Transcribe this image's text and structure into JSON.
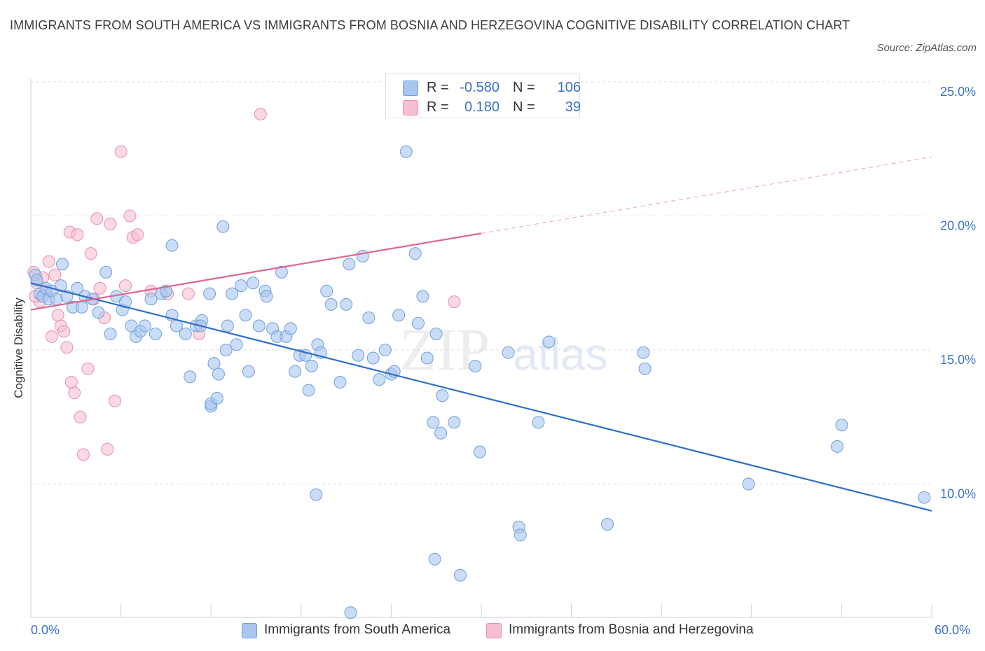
{
  "title": "IMMIGRANTS FROM SOUTH AMERICA VS IMMIGRANTS FROM BOSNIA AND HERZEGOVINA COGNITIVE DISABILITY CORRELATION CHART",
  "source": "Source: ZipAtlas.com",
  "watermark": {
    "zip": "ZIP",
    "atlas": "atlas"
  },
  "legend": {
    "rows": [
      {
        "r_label": "R =",
        "r_value": "-0.580",
        "n_label": "N =",
        "n_value": "106"
      },
      {
        "r_label": "R =",
        "r_value": "0.180",
        "n_label": "N =",
        "n_value": "39"
      }
    ]
  },
  "colors": {
    "blue_fill": "#a9c6f0",
    "blue_stroke": "#6f9fdc",
    "blue_line": "#2f6fcc",
    "pink_fill": "#f6bfd0",
    "pink_stroke": "#e88fab",
    "pink_line": "#e06591",
    "axis_text": "#3a72c8",
    "grid": "#dddddd"
  },
  "chart_data": {
    "type": "scatter",
    "title": "IMMIGRANTS FROM SOUTH AMERICA VS IMMIGRANTS FROM BOSNIA AND HERZEGOVINA COGNITIVE DISABILITY CORRELATION CHART",
    "xlabel": "",
    "ylabel": "Cognitive Disability",
    "xlim": [
      0,
      60
    ],
    "ylim": [
      5,
      26
    ],
    "x_tick_labels": [
      "0.0%",
      "60.0%"
    ],
    "y_ticks": [
      10,
      15,
      20,
      25
    ],
    "y_tick_labels": [
      "10.0%",
      "15.0%",
      "20.0%",
      "25.0%"
    ],
    "grid": true,
    "legend_position": "bottom",
    "series": [
      {
        "name": "Immigrants from South America",
        "color": "#a9c6f0",
        "trend": {
          "x0": 0,
          "y0": 17.5,
          "x1": 60,
          "y1": 9.0,
          "dashed_from": null
        },
        "points": [
          [
            0.3,
            17.8
          ],
          [
            0.4,
            17.6
          ],
          [
            0.6,
            17.1
          ],
          [
            0.8,
            17.0
          ],
          [
            1.0,
            17.3
          ],
          [
            1.2,
            16.9
          ],
          [
            1.4,
            17.2
          ],
          [
            1.7,
            16.9
          ],
          [
            2.0,
            17.4
          ],
          [
            2.1,
            18.2
          ],
          [
            2.4,
            17.0
          ],
          [
            2.8,
            16.6
          ],
          [
            3.1,
            17.3
          ],
          [
            3.4,
            16.6
          ],
          [
            3.6,
            17.0
          ],
          [
            4.1,
            16.9
          ],
          [
            4.5,
            16.4
          ],
          [
            5.0,
            17.9
          ],
          [
            5.3,
            15.6
          ],
          [
            5.7,
            17.0
          ],
          [
            6.1,
            16.5
          ],
          [
            6.3,
            16.8
          ],
          [
            6.7,
            15.9
          ],
          [
            7.0,
            15.5
          ],
          [
            7.3,
            15.7
          ],
          [
            7.6,
            15.9
          ],
          [
            8.0,
            16.9
          ],
          [
            8.3,
            15.6
          ],
          [
            8.7,
            17.1
          ],
          [
            9.0,
            17.2
          ],
          [
            9.4,
            16.3
          ],
          [
            9.7,
            15.9
          ],
          [
            9.4,
            18.9
          ],
          [
            10.3,
            15.6
          ],
          [
            10.6,
            14.0
          ],
          [
            11.0,
            15.9
          ],
          [
            11.4,
            16.1
          ],
          [
            11.3,
            15.9
          ],
          [
            11.9,
            17.1
          ],
          [
            12.2,
            14.5
          ],
          [
            12.5,
            14.1
          ],
          [
            12.0,
            12.9
          ],
          [
            12.0,
            13.0
          ],
          [
            12.4,
            13.2
          ],
          [
            12.8,
            19.6
          ],
          [
            13.1,
            15.9
          ],
          [
            13.4,
            17.1
          ],
          [
            13.0,
            15.0
          ],
          [
            13.7,
            15.2
          ],
          [
            14.0,
            17.4
          ],
          [
            14.3,
            16.3
          ],
          [
            14.5,
            14.2
          ],
          [
            14.8,
            17.5
          ],
          [
            15.2,
            15.9
          ],
          [
            15.6,
            17.2
          ],
          [
            15.7,
            17.0
          ],
          [
            16.1,
            15.8
          ],
          [
            16.4,
            15.5
          ],
          [
            16.7,
            17.9
          ],
          [
            17.0,
            15.5
          ],
          [
            17.3,
            15.8
          ],
          [
            17.6,
            14.2
          ],
          [
            17.9,
            14.8
          ],
          [
            18.3,
            14.8
          ],
          [
            18.5,
            13.5
          ],
          [
            18.7,
            14.4
          ],
          [
            19.1,
            15.2
          ],
          [
            19.0,
            9.6
          ],
          [
            19.3,
            14.9
          ],
          [
            19.7,
            17.2
          ],
          [
            20.0,
            16.7
          ],
          [
            20.6,
            13.8
          ],
          [
            21.0,
            16.7
          ],
          [
            21.2,
            18.2
          ],
          [
            21.8,
            14.8
          ],
          [
            22.1,
            18.5
          ],
          [
            22.5,
            16.2
          ],
          [
            22.8,
            14.7
          ],
          [
            23.2,
            13.9
          ],
          [
            23.6,
            15.0
          ],
          [
            24.0,
            14.1
          ],
          [
            24.2,
            14.2
          ],
          [
            24.5,
            16.3
          ],
          [
            25.0,
            22.4
          ],
          [
            25.6,
            18.6
          ],
          [
            25.8,
            16.0
          ],
          [
            26.1,
            17.0
          ],
          [
            26.4,
            14.7
          ],
          [
            27.0,
            15.6
          ],
          [
            27.4,
            13.3
          ],
          [
            26.8,
            12.3
          ],
          [
            27.3,
            11.9
          ],
          [
            28.2,
            12.3
          ],
          [
            28.6,
            6.6
          ],
          [
            29.6,
            14.4
          ],
          [
            29.9,
            11.2
          ],
          [
            31.8,
            14.9
          ],
          [
            32.5,
            8.4
          ],
          [
            32.6,
            8.1
          ],
          [
            33.8,
            12.3
          ],
          [
            34.5,
            15.3
          ],
          [
            38.4,
            8.5
          ],
          [
            40.8,
            14.9
          ],
          [
            40.9,
            14.3
          ],
          [
            47.8,
            10.0
          ],
          [
            53.7,
            11.4
          ],
          [
            54.0,
            12.2
          ],
          [
            59.5,
            9.5
          ],
          [
            26.9,
            7.2
          ],
          [
            21.3,
            5.2
          ]
        ]
      },
      {
        "name": "Immigrants from Bosnia and Herzegovina",
        "color": "#f6bfd0",
        "trend": {
          "x0": 0,
          "y0": 16.5,
          "x1": 60,
          "y1": 22.2,
          "dashed_from": 30
        },
        "points": [
          [
            0.2,
            17.9
          ],
          [
            0.4,
            17.5
          ],
          [
            0.6,
            16.8
          ],
          [
            0.8,
            17.7
          ],
          [
            1.0,
            17.2
          ],
          [
            1.2,
            18.3
          ],
          [
            1.4,
            15.5
          ],
          [
            1.6,
            17.8
          ],
          [
            1.8,
            16.3
          ],
          [
            2.0,
            15.9
          ],
          [
            2.2,
            15.7
          ],
          [
            2.4,
            15.1
          ],
          [
            2.6,
            19.4
          ],
          [
            2.7,
            13.8
          ],
          [
            2.9,
            13.4
          ],
          [
            3.1,
            19.3
          ],
          [
            3.3,
            12.5
          ],
          [
            3.5,
            11.1
          ],
          [
            3.8,
            14.3
          ],
          [
            4.0,
            18.6
          ],
          [
            4.2,
            16.9
          ],
          [
            4.4,
            19.9
          ],
          [
            4.6,
            17.3
          ],
          [
            4.9,
            16.2
          ],
          [
            5.1,
            11.3
          ],
          [
            5.3,
            19.7
          ],
          [
            5.6,
            13.1
          ],
          [
            6.0,
            22.4
          ],
          [
            6.3,
            17.4
          ],
          [
            6.6,
            20.0
          ],
          [
            6.8,
            19.2
          ],
          [
            7.1,
            19.3
          ],
          [
            8.0,
            17.2
          ],
          [
            9.1,
            17.1
          ],
          [
            10.5,
            17.1
          ],
          [
            11.2,
            15.6
          ],
          [
            15.3,
            23.8
          ],
          [
            28.2,
            16.8
          ],
          [
            0.3,
            17.0
          ]
        ]
      }
    ]
  },
  "bottom_legend": [
    {
      "label": "Immigrants from South America"
    },
    {
      "label": "Immigrants from Bosnia and Herzegovina"
    }
  ]
}
